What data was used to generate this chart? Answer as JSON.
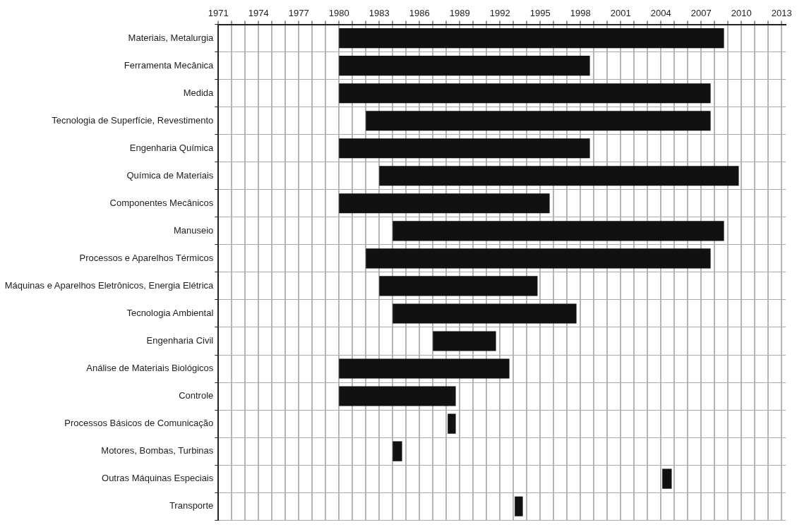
{
  "chart_data": {
    "type": "bar",
    "orientation": "horizontal",
    "categories": [
      "Materiais, Metalurgia",
      "Ferramenta Mecânica",
      "Medida",
      "Tecnologia de Superfície, Revestimento",
      "Engenharia Química",
      "Química de Materiais",
      "Componentes Mecânicos",
      "Manuseio",
      "Processos e Aparelhos Térmicos",
      "Máquinas e Aparelhos Eletrônicos, Energia Elétrica",
      "Tecnologia Ambiental",
      "Engenharia Civil",
      "Análise de Materiais Biológicos",
      "Controle",
      "Processos Básicos de Comunicação",
      "Motores, Bombas, Turbinas",
      "Outras Máquinas Especiais",
      "Transporte"
    ],
    "base": [
      1980,
      1980,
      1980,
      1982,
      1980,
      1983,
      1980,
      1984,
      1982,
      1983,
      1984,
      1987,
      1980,
      1980,
      1988.1,
      1984,
      2004.1,
      1993.1
    ],
    "values": [
      28.7,
      18.7,
      27.7,
      25.7,
      18.7,
      26.8,
      15.7,
      24.7,
      25.7,
      11.8,
      13.7,
      4.7,
      12.7,
      8.7,
      0.6,
      0.7,
      0.7,
      0.6
    ],
    "color": "#111111",
    "xlim": [
      1971,
      2013.3
    ],
    "xticks": [
      1971,
      {
        "value": 1972,
        "label": null
      },
      {
        "value": 1973,
        "label": null
      },
      1974,
      {
        "value": 1975,
        "label": null
      },
      {
        "value": 1976,
        "label": null
      },
      1977,
      {
        "value": 1978,
        "label": null
      },
      {
        "value": 1979,
        "label": null
      },
      1980,
      {
        "value": 1981,
        "label": null
      },
      {
        "value": 1982,
        "label": null
      },
      1983,
      {
        "value": 1984,
        "label": null
      },
      {
        "value": 1985,
        "label": null
      },
      1986,
      {
        "value": 1987,
        "label": null
      },
      {
        "value": 1988,
        "label": null
      },
      1989,
      {
        "value": 1990,
        "label": null
      },
      {
        "value": 1991,
        "label": null
      },
      1992,
      {
        "value": 1993,
        "label": null
      },
      {
        "value": 1994,
        "label": null
      },
      1995,
      {
        "value": 1996,
        "label": null
      },
      {
        "value": 1997,
        "label": null
      },
      1998,
      {
        "value": 1999,
        "label": null
      },
      {
        "value": 2000,
        "label": null
      },
      2001,
      {
        "value": 2002,
        "label": null
      },
      {
        "value": 2003,
        "label": null
      },
      2004,
      {
        "value": 2005,
        "label": null
      },
      {
        "value": 2006,
        "label": null
      },
      2007,
      {
        "value": 2008,
        "label": null
      },
      {
        "value": 2009,
        "label": null
      },
      2010,
      {
        "value": 2011,
        "label": null
      },
      {
        "value": 2012,
        "label": null
      },
      2013
    ],
    "grid": true,
    "legend": false
  }
}
